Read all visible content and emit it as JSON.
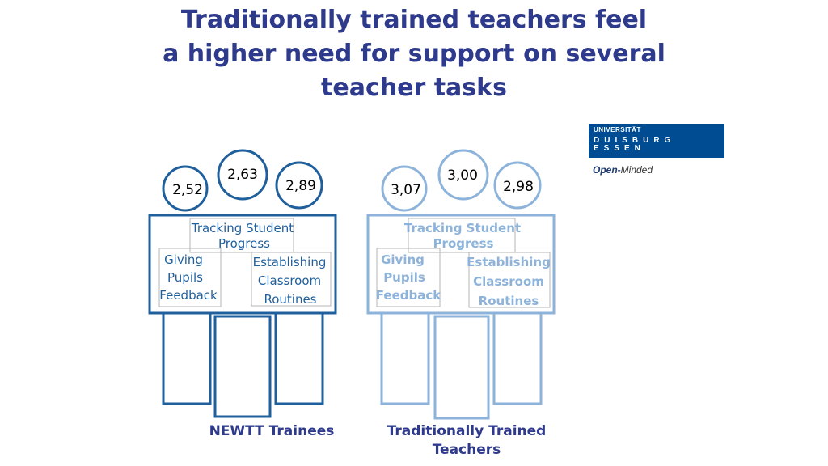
{
  "title": {
    "line1": "Traditionally trained teachers feel",
    "line2": "a higher need for support on several",
    "line3": "teacher tasks"
  },
  "logo": {
    "line1": "UNIVERSITÄT",
    "line2": "DUISBURG",
    "line3": "ESSEN",
    "tagline_bold": "Open-",
    "tagline_rest": "Minded",
    "brand_color": "#004c93"
  },
  "groups": [
    {
      "caption": "NEWTT Trainees",
      "color": "#1f5f9c",
      "values": {
        "feedback": "2,52",
        "tracking": "2,63",
        "routines": "2,89"
      },
      "labels": {
        "tracking_1": "Tracking Student",
        "tracking_2": "Progress",
        "giving_1": "Giving",
        "giving_2": "Pupils",
        "giving_3": "Feedback",
        "est_1": "Establishing",
        "est_2": "Classroom",
        "est_3": "Routines"
      }
    },
    {
      "caption_1": "Traditionally Trained",
      "caption_2": "Teachers",
      "color": "#8db3da",
      "values": {
        "feedback": "3,07",
        "tracking": "3,00",
        "routines": "2,98"
      },
      "labels": {
        "tracking_1": "Tracking Student",
        "tracking_2": "Progress",
        "giving_1": "Giving",
        "giving_2": "Pupils",
        "giving_3": "Feedback",
        "est_1": "Establishing",
        "est_2": "Classroom",
        "est_3": "Routines"
      }
    }
  ]
}
